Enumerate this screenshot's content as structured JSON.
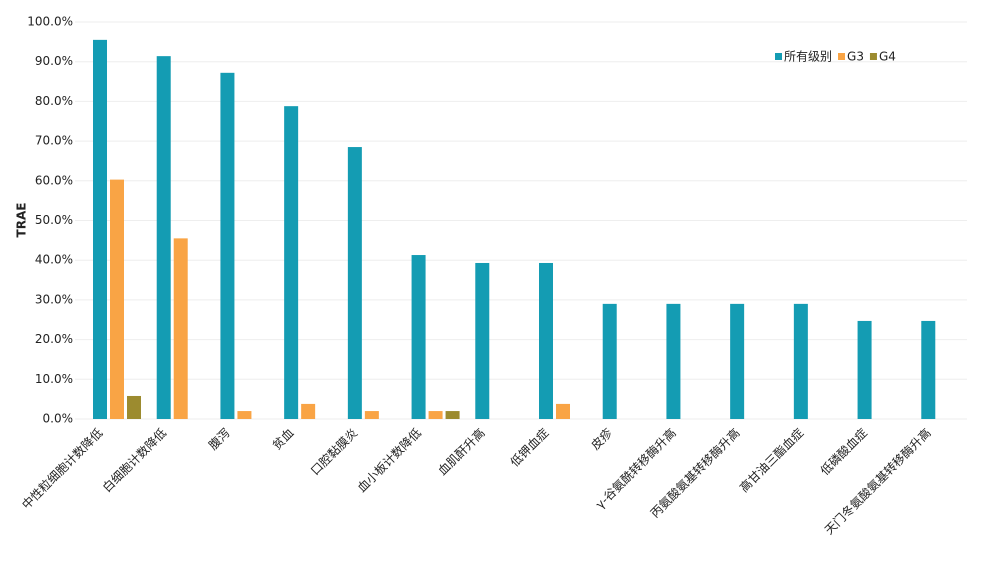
{
  "chart_data": {
    "type": "bar",
    "y_label": "TRAE",
    "categories": [
      "中性粒细胞计数降低",
      "白细胞计数降低",
      "腹泻",
      "贫血",
      "口腔黏膜炎",
      "血小板计数降低",
      "血肌酐升高",
      "低钾血症",
      "皮疹",
      "γ-谷氨酰转移酶升高",
      "丙氨酸氨基转移酶升高",
      "高甘油三酯血症",
      "低磷酸血症",
      "天门冬氨酸氨基转移酶升高"
    ],
    "series": [
      {
        "name": "所有级别",
        "color": "#149cb3",
        "values": [
          95.5,
          91.4,
          87.2,
          78.8,
          68.5,
          41.3,
          39.3,
          39.3,
          29.0,
          29.0,
          29.0,
          29.0,
          24.7,
          24.7
        ]
      },
      {
        "name": "G3",
        "color": "#f9a445",
        "values": [
          60.3,
          45.5,
          2.0,
          3.8,
          2.0,
          2.0,
          null,
          3.8,
          null,
          null,
          null,
          null,
          null,
          null
        ]
      },
      {
        "name": "G4",
        "color": "#9c8b2f",
        "values": [
          5.8,
          null,
          null,
          null,
          null,
          2.0,
          null,
          null,
          null,
          null,
          null,
          null,
          null,
          null
        ]
      }
    ],
    "ylim": [
      0,
      100
    ],
    "yticks": [
      {
        "value": 0,
        "label": "0.0%"
      },
      {
        "value": 10,
        "label": "10.0%"
      },
      {
        "value": 20,
        "label": "20.0%"
      },
      {
        "value": 30,
        "label": "30.0%"
      },
      {
        "value": 40,
        "label": "40.0%"
      },
      {
        "value": 50,
        "label": "50.0%"
      },
      {
        "value": 60,
        "label": "60.0%"
      },
      {
        "value": 70,
        "label": "70.0%"
      },
      {
        "value": 80,
        "label": "80.0%"
      },
      {
        "value": 90,
        "label": "90.0%"
      },
      {
        "value": 100,
        "label": "100.0%"
      }
    ],
    "grid": true,
    "legend": "top-right"
  }
}
